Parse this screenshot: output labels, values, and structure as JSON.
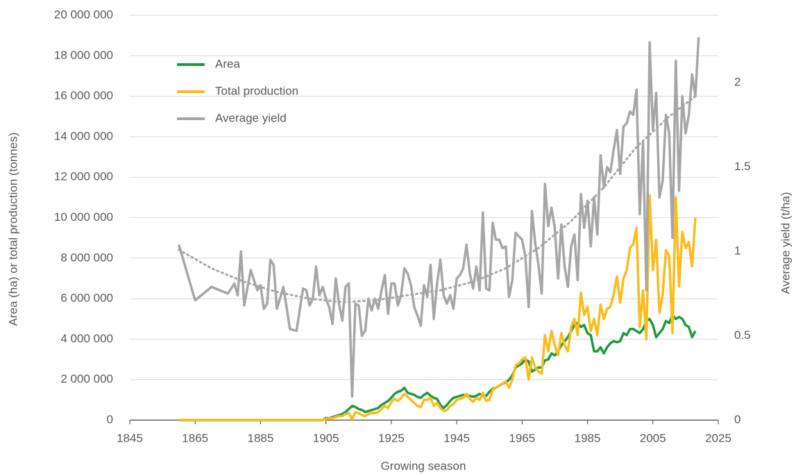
{
  "chart_data": {
    "type": "line",
    "xlabel": "Growing season",
    "ylabel": "Area (ha) or total production (tonnes)",
    "y2label": "Average yield (t/ha)",
    "xlim": [
      1845,
      2025
    ],
    "xticks": [
      1845,
      1865,
      1885,
      1905,
      1925,
      1945,
      1965,
      1985,
      2005,
      2025
    ],
    "ylim": [
      0,
      20000000
    ],
    "yticks": [
      0,
      {
        "value": 2000000,
        "label": "2 000 000"
      },
      {
        "value": 4000000,
        "label": "4 000 000"
      },
      {
        "value": 6000000,
        "label": "6 000 000"
      },
      {
        "value": 8000000,
        "label": "8 000 000"
      },
      {
        "value": 10000000,
        "label": "10 000 000"
      },
      {
        "value": 12000000,
        "label": "12 000 000"
      },
      {
        "value": 14000000,
        "label": "14 000 000"
      },
      {
        "value": 16000000,
        "label": "16 000 000"
      },
      {
        "value": 18000000,
        "label": "18 000 000"
      },
      {
        "value": 20000000,
        "label": "20 000 000"
      }
    ],
    "y2lim": [
      0,
      2.4
    ],
    "y2ticks": [
      0,
      0.5,
      1,
      1.5,
      2
    ],
    "grid": true,
    "legend": "upper-left",
    "x": [
      1860,
      1865,
      1870,
      1875,
      1877,
      1878,
      1879,
      1880,
      1882,
      1884,
      1885,
      1886,
      1887,
      1888,
      1889,
      1890,
      1892,
      1894,
      1896,
      1898,
      1899,
      1900,
      1901,
      1902,
      1903,
      1904,
      1905,
      1906,
      1907,
      1908,
      1909,
      1910,
      1911,
      1912,
      1913,
      1914,
      1915,
      1916,
      1917,
      1918,
      1919,
      1920,
      1921,
      1922,
      1923,
      1924,
      1925,
      1926,
      1927,
      1928,
      1929,
      1930,
      1931,
      1932,
      1933,
      1934,
      1935,
      1936,
      1937,
      1938,
      1939,
      1940,
      1941,
      1942,
      1943,
      1944,
      1945,
      1946,
      1947,
      1948,
      1949,
      1950,
      1951,
      1952,
      1953,
      1954,
      1955,
      1956,
      1957,
      1958,
      1959,
      1960,
      1961,
      1962,
      1963,
      1964,
      1965,
      1966,
      1967,
      1968,
      1969,
      1970,
      1971,
      1972,
      1973,
      1974,
      1975,
      1976,
      1977,
      1978,
      1979,
      1980,
      1981,
      1982,
      1983,
      1984,
      1985,
      1986,
      1987,
      1988,
      1989,
      1990,
      1991,
      1992,
      1993,
      1994,
      1995,
      1996,
      1997,
      1998,
      1999,
      2000,
      2001,
      2002,
      2003,
      2004,
      2005,
      2006,
      2007,
      2008,
      2009,
      2010,
      2011,
      2012,
      2013,
      2014,
      2015,
      2016,
      2017,
      2018,
      2019
    ],
    "series": [
      {
        "name": "Area",
        "color": "#1f9a3f",
        "values": [
          0,
          0,
          0,
          0,
          0,
          0,
          0,
          0,
          0,
          0,
          0,
          0,
          0,
          0,
          0,
          0,
          0,
          0,
          0,
          0,
          0,
          0,
          0,
          0,
          0,
          0,
          100000,
          100000,
          150000,
          200000,
          250000,
          300000,
          400000,
          550000,
          700000,
          650000,
          550000,
          500000,
          400000,
          450000,
          500000,
          550000,
          600000,
          750000,
          850000,
          950000,
          1100000,
          1300000,
          1400000,
          1450000,
          1600000,
          1350000,
          1300000,
          1250000,
          1150000,
          1100000,
          1250000,
          1350000,
          1200000,
          1100000,
          1050000,
          750000,
          600000,
          750000,
          950000,
          1100000,
          1150000,
          1200000,
          1250000,
          1200000,
          1200000,
          1150000,
          1200000,
          1300000,
          1200000,
          1200000,
          1400000,
          1550000,
          1600000,
          1700000,
          1800000,
          1850000,
          2000000,
          2200000,
          2600000,
          2700000,
          2800000,
          3000000,
          2900000,
          2400000,
          2500000,
          2600000,
          2600000,
          2950000,
          3000000,
          3300000,
          3200000,
          3400000,
          3700000,
          3900000,
          4100000,
          4400000,
          4700000,
          4800000,
          4600000,
          4700000,
          4300000,
          4200000,
          3400000,
          3400000,
          3600000,
          3300000,
          3600000,
          3800000,
          3900000,
          3850000,
          3900000,
          4300000,
          4200000,
          4500000,
          4500000,
          4400000,
          4300000,
          4500000,
          4900000,
          5000000,
          4700000,
          4100000,
          4300000,
          4500000,
          4900000,
          4800000,
          5200000,
          5000000,
          5100000,
          5000000,
          4700000,
          4600000,
          4100000,
          4400000,
          null
        ]
      },
      {
        "name": "Total production",
        "color": "#fbbc1c",
        "values": [
          0,
          0,
          0,
          0,
          0,
          0,
          0,
          0,
          0,
          0,
          0,
          0,
          0,
          0,
          0,
          0,
          0,
          0,
          0,
          0,
          0,
          0,
          0,
          0,
          0,
          0,
          50000,
          100000,
          100000,
          150000,
          200000,
          200000,
          300000,
          350000,
          50000,
          400000,
          350000,
          250000,
          200000,
          300000,
          350000,
          350000,
          400000,
          550000,
          700000,
          600000,
          900000,
          1050000,
          950000,
          1100000,
          1300000,
          1150000,
          1000000,
          850000,
          700000,
          650000,
          1000000,
          1000000,
          1100000,
          700000,
          850000,
          600000,
          450000,
          500000,
          700000,
          800000,
          1000000,
          1050000,
          1100000,
          1300000,
          1050000,
          900000,
          1100000,
          1000000,
          1350000,
          950000,
          1000000,
          1500000,
          1600000,
          1700000,
          1800000,
          1900000,
          1600000,
          2000000,
          2700000,
          2800000,
          3000000,
          3100000,
          2000000,
          3100000,
          2600000,
          2400000,
          2300000,
          4200000,
          3400000,
          4400000,
          3700000,
          3200000,
          4300000,
          3700000,
          3400000,
          4600000,
          5000000,
          4200000,
          6300000,
          5200000,
          5600000,
          4400000,
          5000000,
          4200000,
          5700000,
          5000000,
          5500000,
          5600000,
          6200000,
          7100000,
          5800000,
          7000000,
          7400000,
          8500000,
          8700000,
          9500000,
          4600000,
          6400000,
          4000000,
          11100000,
          7400000,
          8900000,
          5300000,
          6200000,
          8400000,
          8100000,
          4300000,
          11000000,
          6600000,
          9300000,
          8500000,
          8800000,
          7600000,
          10000000,
          null
        ]
      },
      {
        "name": "Average yield",
        "color": "#a6a6a6",
        "axis": "y2",
        "values": [
          1.04,
          0.71,
          0.79,
          0.75,
          0.81,
          0.74,
          1.0,
          0.68,
          0.89,
          0.77,
          0.8,
          0.66,
          0.69,
          0.95,
          0.92,
          0.66,
          0.79,
          0.54,
          0.53,
          0.78,
          0.77,
          0.68,
          0.72,
          0.91,
          0.74,
          0.79,
          0.72,
          0.67,
          0.57,
          0.84,
          0.69,
          0.59,
          0.79,
          0.81,
          0.14,
          0.69,
          0.68,
          0.5,
          0.53,
          0.72,
          0.65,
          0.72,
          0.66,
          0.77,
          0.86,
          0.63,
          0.81,
          0.81,
          0.68,
          0.74,
          0.9,
          0.87,
          0.8,
          0.67,
          0.62,
          0.56,
          0.8,
          0.73,
          0.92,
          0.6,
          0.81,
          0.95,
          0.74,
          0.69,
          0.74,
          0.66,
          0.84,
          0.86,
          0.9,
          1.04,
          0.87,
          0.78,
          0.91,
          0.77,
          1.23,
          0.78,
          0.77,
          1.17,
          1.07,
          1.07,
          1.02,
          1.03,
          0.73,
          0.83,
          1.11,
          1.09,
          1.07,
          0.97,
          0.67,
          1.24,
          1.05,
          0.92,
          0.75,
          1.4,
          1.15,
          1.26,
          1.14,
          0.84,
          1.16,
          0.91,
          0.79,
          1.03,
          1.1,
          0.83,
          1.34,
          1.14,
          1.3,
          1.03,
          1.32,
          1.1,
          1.57,
          1.38,
          1.5,
          1.47,
          1.6,
          1.72,
          1.46,
          1.74,
          1.76,
          1.83,
          1.81,
          1.96,
          1.22,
          1.65,
          0.77,
          2.24,
          1.72,
          1.94,
          1.32,
          1.42,
          1.81,
          1.7,
          1.08,
          2.13,
          1.36,
          1.92,
          1.7,
          1.81,
          2.05,
          1.92,
          2.27
        ]
      },
      {
        "color": "#a6a6a6",
        "axis": "y2",
        "style": "dotted",
        "x": [
          1860,
          1870,
          1880,
          1890,
          1900,
          1910,
          1920,
          1930,
          1940,
          1950,
          1960,
          1970,
          1980,
          1990,
          2000,
          2010,
          2018
        ],
        "values": [
          1.01,
          0.9,
          0.82,
          0.76,
          0.72,
          0.7,
          0.71,
          0.74,
          0.77,
          0.82,
          0.9,
          1.02,
          1.18,
          1.38,
          1.62,
          1.8,
          1.92
        ]
      }
    ]
  }
}
